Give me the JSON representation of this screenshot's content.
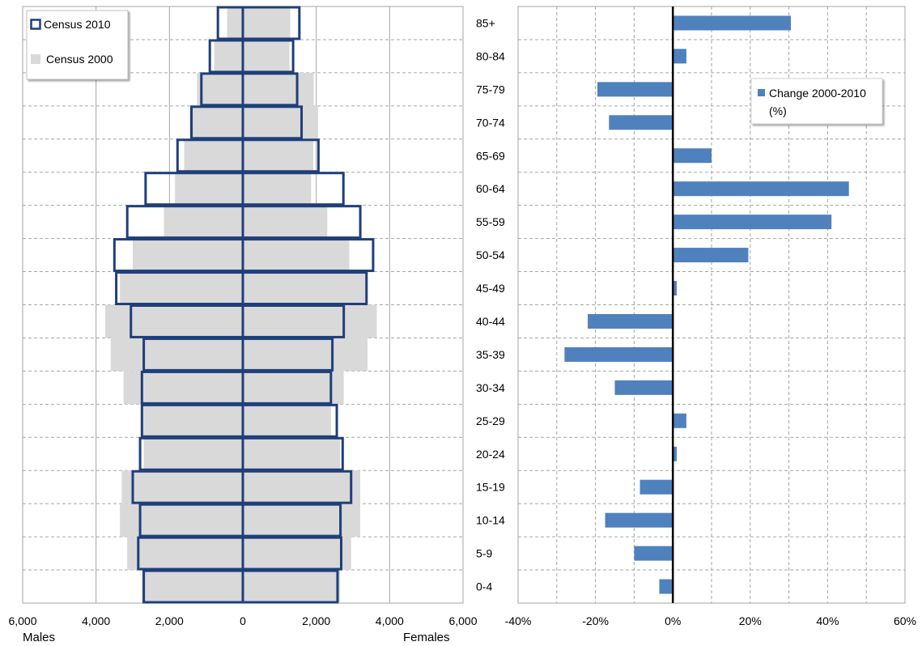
{
  "chart_data": [
    {
      "type": "bar",
      "orientation": "horizontal",
      "subtype": "population-pyramid",
      "categories": [
        "0-4",
        "5-9",
        "10-14",
        "15-19",
        "20-24",
        "25-29",
        "30-34",
        "35-39",
        "40-44",
        "45-49",
        "50-54",
        "55-59",
        "60-64",
        "65-69",
        "70-74",
        "75-79",
        "80-84",
        "85+"
      ],
      "series": [
        {
          "name": "Census 2010",
          "style": "outline",
          "color": "#1f3f7a",
          "males": [
            2700,
            2850,
            2800,
            3000,
            2800,
            2750,
            2750,
            2700,
            3050,
            3450,
            3500,
            3150,
            2650,
            1780,
            1400,
            1130,
            900,
            680
          ],
          "females": [
            2580,
            2680,
            2660,
            2950,
            2720,
            2560,
            2400,
            2440,
            2750,
            3370,
            3550,
            3200,
            2740,
            2060,
            1600,
            1480,
            1370,
            1540
          ]
        },
        {
          "name": "Census 2000",
          "style": "fill",
          "color": "#d9d9d9",
          "males": [
            2750,
            3150,
            3350,
            3300,
            2700,
            2750,
            3250,
            3600,
            3750,
            3350,
            3000,
            2150,
            1850,
            1600,
            1450,
            1250,
            780,
            430
          ],
          "females": [
            2650,
            2950,
            3200,
            3200,
            2650,
            2400,
            2750,
            3400,
            3650,
            3350,
            2900,
            2300,
            1860,
            1920,
            2050,
            1930,
            1270,
            1290
          ]
        }
      ],
      "x_ticks": [
        "6,000",
        "4,000",
        "2,000",
        "0",
        "2,000",
        "4,000",
        "6,000"
      ],
      "xlim": [
        -6000,
        6000
      ],
      "xlabel_left": "Males",
      "xlabel_right": "Females",
      "grid": true,
      "legend_position": "top-left"
    },
    {
      "type": "bar",
      "orientation": "horizontal",
      "categories": [
        "0-4",
        "5-9",
        "10-14",
        "15-19",
        "20-24",
        "25-29",
        "30-34",
        "35-39",
        "40-44",
        "45-49",
        "50-54",
        "55-59",
        "60-64",
        "65-69",
        "70-74",
        "75-79",
        "80-84",
        "85+"
      ],
      "series": [
        {
          "name": "Change 2000-2010 (%)",
          "name_lines": [
            "Change 2000-2010",
            "(%)"
          ],
          "color": "#4f81bd",
          "values": [
            -3.5,
            -10,
            -17.5,
            -8.5,
            1,
            3.5,
            -15,
            -28,
            -22,
            1,
            19.5,
            41,
            45.5,
            10,
            -16.5,
            -19.5,
            3.5,
            30.5
          ]
        }
      ],
      "x_ticks": [
        "-40%",
        "-20%",
        "0%",
        "20%",
        "40%",
        "60%"
      ],
      "xlim": [
        -40,
        60
      ],
      "grid": true,
      "legend_position": "top-right"
    }
  ]
}
